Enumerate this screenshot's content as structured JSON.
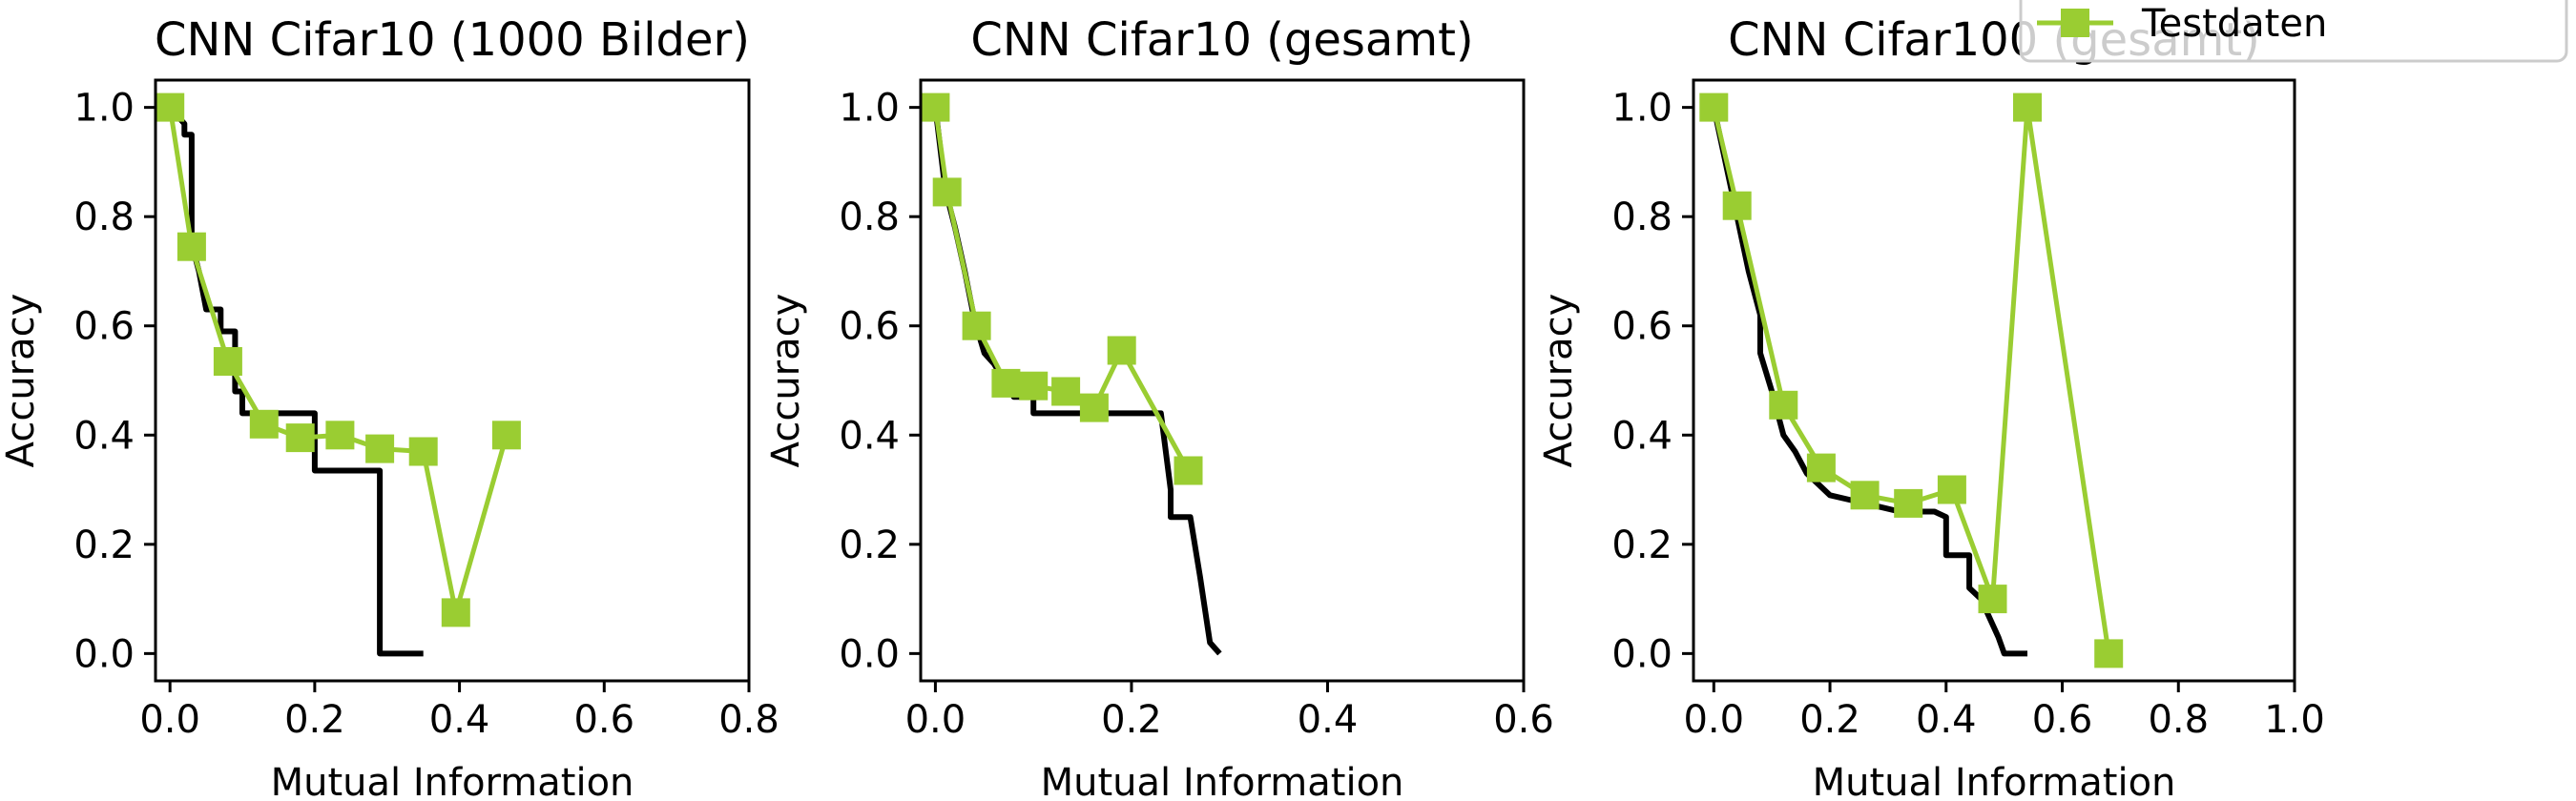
{
  "legend": {
    "entries": [
      {
        "label": "Testdaten",
        "color": "#9acd32",
        "marker": "square"
      }
    ]
  },
  "colors": {
    "test_series": "#9acd32",
    "reference_curve": "#000000"
  },
  "chart_data": [
    {
      "type": "line",
      "title": "CNN Cifar10 (1000 Bilder)",
      "xlabel": "Mutual Information",
      "ylabel": "Accuracy",
      "xlim": [
        -0.02,
        0.8
      ],
      "ylim": [
        -0.05,
        1.05
      ],
      "xticks": [
        0.0,
        0.2,
        0.4,
        0.6,
        0.8
      ],
      "xtick_labels": [
        "0.0",
        "0.2",
        "0.4",
        "0.6",
        "0.8"
      ],
      "yticks": [
        0.0,
        0.2,
        0.4,
        0.6,
        0.8,
        1.0
      ],
      "ytick_labels": [
        "0.0",
        "0.2",
        "0.4",
        "0.6",
        "0.8",
        "1.0"
      ],
      "grid": false,
      "series": [
        {
          "role": "reference",
          "color": "#000000",
          "marker": "none",
          "x": [
            0.0,
            0.02,
            0.02,
            0.03,
            0.03,
            0.04,
            0.05,
            0.05,
            0.07,
            0.07,
            0.09,
            0.09,
            0.1,
            0.1,
            0.13,
            0.15,
            0.2,
            0.2,
            0.29,
            0.29,
            0.35
          ],
          "y": [
            1.0,
            0.97,
            0.95,
            0.95,
            0.75,
            0.7,
            0.63,
            0.63,
            0.63,
            0.59,
            0.59,
            0.48,
            0.48,
            0.44,
            0.44,
            0.44,
            0.44,
            0.335,
            0.335,
            0.0,
            0.0
          ]
        },
        {
          "role": "test",
          "name": "Testdaten",
          "color": "#9acd32",
          "marker": "square",
          "x": [
            0.0,
            0.03,
            0.08,
            0.13,
            0.18,
            0.235,
            0.29,
            0.35,
            0.395,
            0.465
          ],
          "y": [
            1.0,
            0.745,
            0.535,
            0.42,
            0.395,
            0.4,
            0.375,
            0.37,
            0.075,
            0.4
          ]
        }
      ]
    },
    {
      "type": "line",
      "title": "CNN Cifar10 (gesamt)",
      "xlabel": "Mutual Information",
      "ylabel": "Accuracy",
      "xlim": [
        -0.015,
        0.6
      ],
      "ylim": [
        -0.05,
        1.05
      ],
      "xticks": [
        0.0,
        0.2,
        0.4,
        0.6
      ],
      "xtick_labels": [
        "0.0",
        "0.2",
        "0.4",
        "0.6"
      ],
      "yticks": [
        0.0,
        0.2,
        0.4,
        0.6,
        0.8,
        1.0
      ],
      "ytick_labels": [
        "0.0",
        "0.2",
        "0.4",
        "0.6",
        "0.8",
        "1.0"
      ],
      "grid": false,
      "series": [
        {
          "role": "reference",
          "color": "#000000",
          "marker": "none",
          "x": [
            0.0,
            0.01,
            0.02,
            0.03,
            0.04,
            0.05,
            0.06,
            0.07,
            0.08,
            0.08,
            0.1,
            0.1,
            0.22,
            0.23,
            0.24,
            0.24,
            0.26,
            0.27,
            0.28,
            0.29
          ],
          "y": [
            1.0,
            0.85,
            0.78,
            0.7,
            0.61,
            0.55,
            0.53,
            0.5,
            0.49,
            0.47,
            0.47,
            0.44,
            0.44,
            0.44,
            0.3,
            0.25,
            0.25,
            0.14,
            0.02,
            0.0
          ]
        },
        {
          "role": "test",
          "name": "Testdaten",
          "color": "#9acd32",
          "marker": "square",
          "x": [
            0.0,
            0.012,
            0.042,
            0.072,
            0.1,
            0.133,
            0.162,
            0.19,
            0.258
          ],
          "y": [
            1.0,
            0.845,
            0.6,
            0.495,
            0.49,
            0.48,
            0.45,
            0.555,
            0.335
          ]
        }
      ]
    },
    {
      "type": "line",
      "title": "CNN Cifar100 (gesamt)",
      "xlabel": "Mutual Information",
      "ylabel": "Accuracy",
      "xlim": [
        -0.035,
        1.0
      ],
      "ylim": [
        -0.05,
        1.05
      ],
      "xticks": [
        0.0,
        0.2,
        0.4,
        0.6,
        0.8,
        1.0
      ],
      "xtick_labels": [
        "0.0",
        "0.2",
        "0.4",
        "0.6",
        "0.8",
        "1.0"
      ],
      "yticks": [
        0.0,
        0.2,
        0.4,
        0.6,
        0.8,
        1.0
      ],
      "ytick_labels": [
        "0.0",
        "0.2",
        "0.4",
        "0.6",
        "0.8",
        "1.0"
      ],
      "grid": false,
      "series": [
        {
          "role": "reference",
          "color": "#000000",
          "marker": "none",
          "x": [
            0.0,
            0.02,
            0.04,
            0.06,
            0.08,
            0.08,
            0.1,
            0.12,
            0.14,
            0.16,
            0.18,
            0.2,
            0.24,
            0.28,
            0.32,
            0.38,
            0.4,
            0.4,
            0.44,
            0.44,
            0.46,
            0.49,
            0.5,
            0.54
          ],
          "y": [
            1.0,
            0.9,
            0.8,
            0.7,
            0.62,
            0.55,
            0.48,
            0.4,
            0.37,
            0.33,
            0.31,
            0.29,
            0.28,
            0.27,
            0.26,
            0.26,
            0.25,
            0.18,
            0.18,
            0.12,
            0.1,
            0.03,
            0.0,
            0.0
          ]
        },
        {
          "role": "test",
          "name": "Testdaten",
          "color": "#9acd32",
          "marker": "square",
          "x": [
            0.0,
            0.04,
            0.12,
            0.185,
            0.26,
            0.335,
            0.41,
            0.48,
            0.54,
            0.68
          ],
          "y": [
            1.0,
            0.82,
            0.455,
            0.34,
            0.29,
            0.275,
            0.3,
            0.1,
            1.0,
            0.0
          ]
        }
      ]
    }
  ]
}
